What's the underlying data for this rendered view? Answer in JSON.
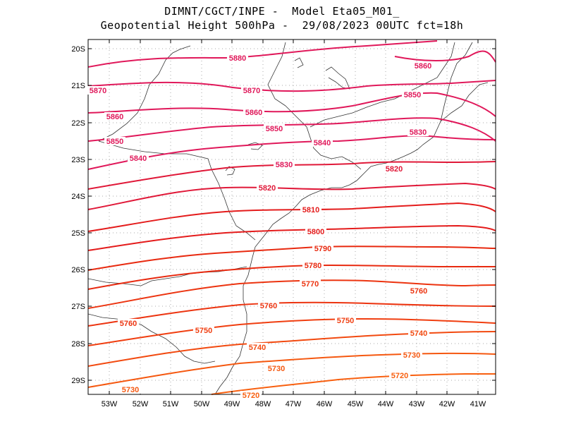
{
  "header": {
    "line1": "DIMNT/CGCT/INPE -  Model Eta05_M01_",
    "line2": "Geopotential Height 500hPa -  29/08/2023 00UTC fct=18h"
  },
  "axes": {
    "lat_ticks": [
      "20S",
      "21S",
      "22S",
      "23S",
      "24S",
      "25S",
      "26S",
      "27S",
      "28S",
      "29S"
    ],
    "lon_ticks": [
      "53W",
      "52W",
      "51W",
      "50W",
      "49W",
      "48W",
      "47W",
      "46W",
      "45W",
      "44W",
      "43W",
      "42W",
      "41W"
    ]
  },
  "contour_labels": [
    {
      "text": "5880",
      "color": "#e0185a"
    },
    {
      "text": "5860",
      "color": "#e0185a"
    },
    {
      "text": "5870",
      "color": "#e0185a"
    },
    {
      "text": "5870",
      "color": "#e0185a"
    },
    {
      "text": "5850",
      "color": "#e0185a"
    },
    {
      "text": "5860",
      "color": "#e0185a"
    },
    {
      "text": "5860",
      "color": "#e0185a"
    },
    {
      "text": "5850",
      "color": "#e0185a"
    },
    {
      "text": "5830",
      "color": "#e0185a"
    },
    {
      "text": "5850",
      "color": "#e0185a"
    },
    {
      "text": "5840",
      "color": "#e0185a"
    },
    {
      "text": "5840",
      "color": "#e0185a"
    },
    {
      "text": "5830",
      "color": "#e0185a"
    },
    {
      "text": "5820",
      "color": "#e01838"
    },
    {
      "text": "5820",
      "color": "#e01838"
    },
    {
      "text": "5810",
      "color": "#e41c1c"
    },
    {
      "text": "5800",
      "color": "#e41c1c"
    },
    {
      "text": "5790",
      "color": "#e82a10"
    },
    {
      "text": "5780",
      "color": "#e82a10"
    },
    {
      "text": "5770",
      "color": "#ec3410"
    },
    {
      "text": "5760",
      "color": "#ec3410"
    },
    {
      "text": "5760",
      "color": "#ec3410"
    },
    {
      "text": "5760",
      "color": "#ec3410"
    },
    {
      "text": "5750",
      "color": "#f03e10"
    },
    {
      "text": "5750",
      "color": "#f03e10"
    },
    {
      "text": "5740",
      "color": "#f24a10"
    },
    {
      "text": "5740",
      "color": "#f24a10"
    },
    {
      "text": "5730",
      "color": "#f55810"
    },
    {
      "text": "5730",
      "color": "#f55810"
    },
    {
      "text": "5730",
      "color": "#f55810"
    },
    {
      "text": "5720",
      "color": "#f86010"
    },
    {
      "text": "5720",
      "color": "#f86010"
    }
  ]
}
